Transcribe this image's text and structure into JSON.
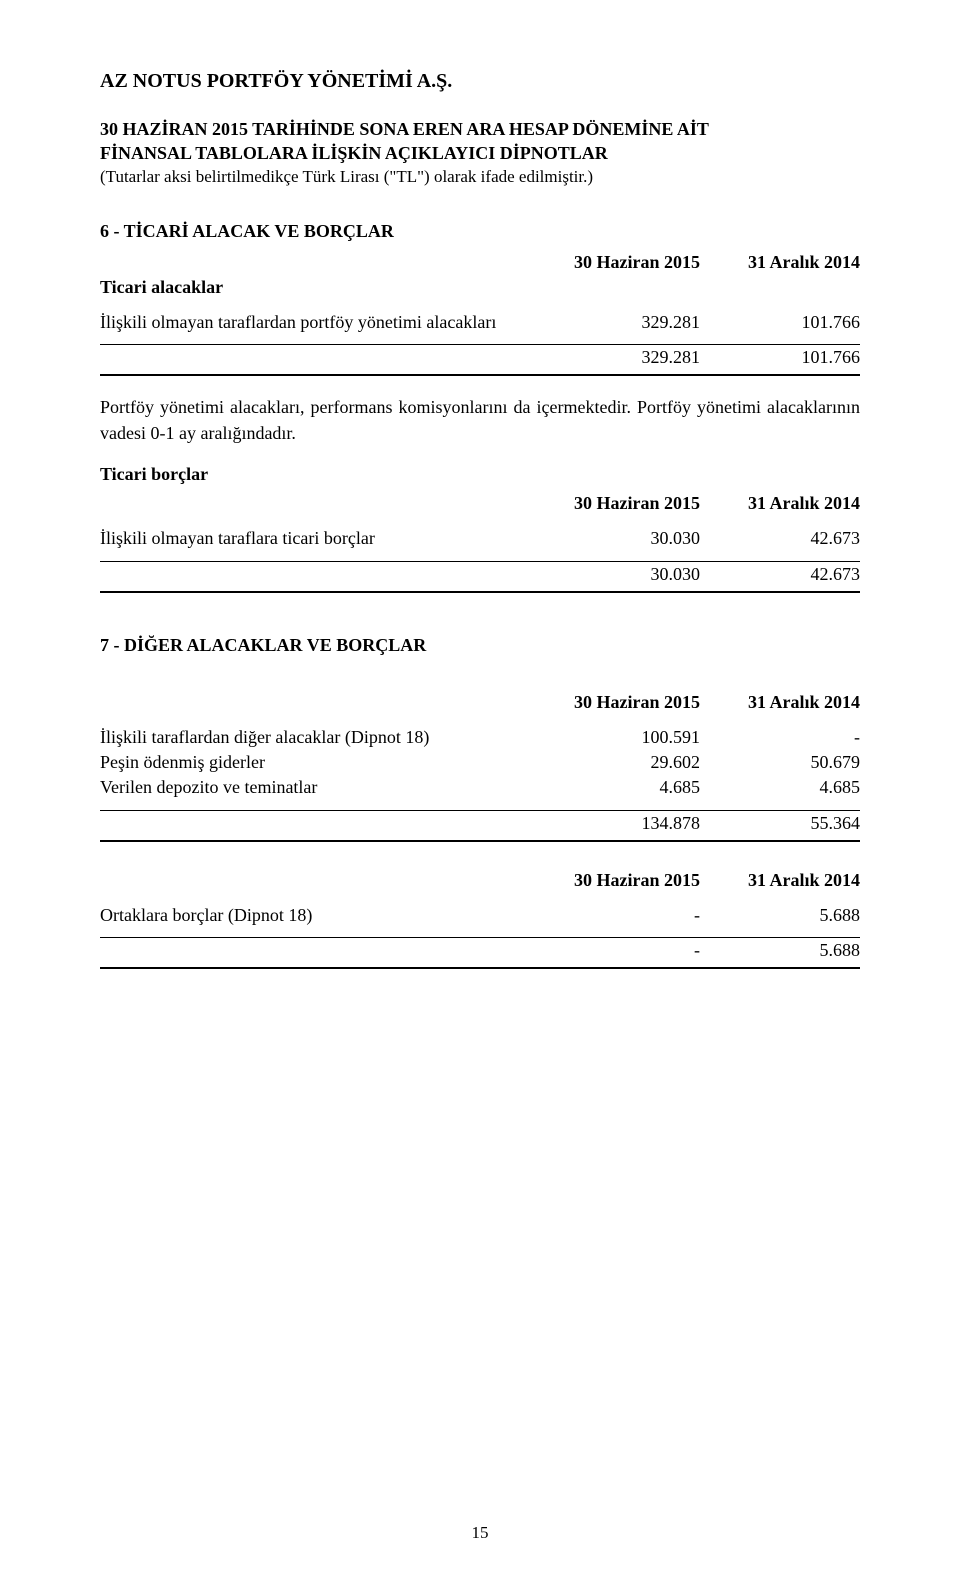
{
  "company": "AZ NOTUS PORTFÖY YÖNETİMİ A.Ş.",
  "report": {
    "line1": "30 HAZİRAN 2015 TARİHİNDE SONA EREN ARA HESAP DÖNEMİNE AİT",
    "line2": "FİNANSAL TABLOLARA İLİŞKİN AÇIKLAYICI DİPNOTLAR",
    "subnote": "(Tutarlar aksi belirtilmedikçe Türk Lirası (\"TL\") olarak ifade edilmiştir.)"
  },
  "sec6": {
    "heading": "6 - TİCARİ ALACAK VE BORÇLAR",
    "col1": "30 Haziran 2015",
    "col2": "31 Aralık 2014",
    "sub1": "Ticari alacaklar",
    "row1_label": "İlişkili olmayan taraflardan portföy yönetimi alacakları",
    "row1_v1": "329.281",
    "row1_v2": "101.766",
    "total1_v1": "329.281",
    "total1_v2": "101.766",
    "para": "Portföy yönetimi alacakları, performans komisyonlarını da içermektedir. Portföy yönetimi alacaklarının vadesi 0-1 ay aralığındadır.",
    "sub2": "Ticari borçlar",
    "col1b": "30 Haziran 2015",
    "col2b": "31 Aralık 2014",
    "row2_label": "İlişkili olmayan taraflara ticari borçlar",
    "row2_v1": "30.030",
    "row2_v2": "42.673",
    "total2_v1": "30.030",
    "total2_v2": "42.673"
  },
  "sec7": {
    "heading": "7 - DİĞER ALACAKLAR VE BORÇLAR",
    "col1": "30 Haziran 2015",
    "col2": "31 Aralık 2014",
    "r1_label": "İlişkili taraflardan diğer alacaklar (Dipnot 18)",
    "r1_v1": "100.591",
    "r1_v2": "-",
    "r2_label": "Peşin ödenmiş giderler",
    "r2_v1": "29.602",
    "r2_v2": "50.679",
    "r3_label": "Verilen depozito ve teminatlar",
    "r3_v1": "4.685",
    "r3_v2": "4.685",
    "total1_v1": "134.878",
    "total1_v2": "55.364",
    "col1b": "30 Haziran 2015",
    "col2b": "31 Aralık 2014",
    "r4_label": "Ortaklara borçlar (Dipnot 18)",
    "r4_v1": "-",
    "r4_v2": "5.688",
    "total2_v1": "-",
    "total2_v2": "5.688"
  },
  "page_number": "15"
}
